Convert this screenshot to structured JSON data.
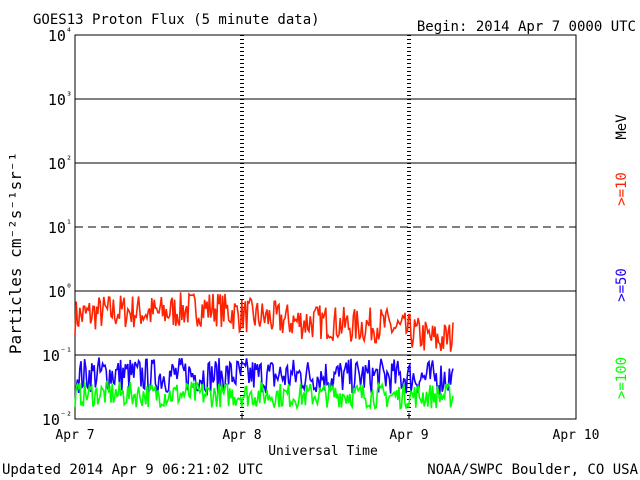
{
  "header": {
    "title": "GOES13 Proton Flux (5 minute data)",
    "begin": "Begin: 2014 Apr 7 0000 UTC"
  },
  "footer": {
    "updated": "Updated 2014 Apr  9 06:21:02 UTC",
    "credit": "NOAA/SWPC Boulder, CO USA"
  },
  "legend": {
    "unit": "MeV",
    "entries": [
      {
        "label": ">=10",
        "color": "#ff2200"
      },
      {
        "label": ">=50",
        "color": "#1a00ff"
      },
      {
        "label": ">=100",
        "color": "#00ff00"
      }
    ]
  },
  "chart_data": {
    "type": "line",
    "title": "GOES13 Proton Flux (5 minute data)",
    "xlabel": "Universal Time",
    "ylabel": "Particles cm⁻²s⁻¹sr⁻¹",
    "x_ticks": [
      "Apr 7",
      "Apr 8",
      "Apr 9",
      "Apr 10"
    ],
    "y_ticks": [
      "10⁻²",
      "10⁻¹",
      "10⁰",
      "10¹",
      "10²",
      "10³",
      "10⁴"
    ],
    "y_scale": "log",
    "ylim": [
      0.01,
      10000
    ],
    "xlim": [
      "2014-04-07 00:00",
      "2014-04-10 00:00"
    ],
    "dashed_gridline_at": 10,
    "series": [
      {
        "name": ">=10",
        "color": "#ff2200",
        "x": [
          "2014-04-07 00:00",
          "2014-04-07 04:00",
          "2014-04-07 08:00",
          "2014-04-07 12:00",
          "2014-04-07 16:00",
          "2014-04-07 20:00",
          "2014-04-08 00:00",
          "2014-04-08 04:00",
          "2014-04-08 08:00",
          "2014-04-08 12:00",
          "2014-04-08 16:00",
          "2014-04-08 20:00",
          "2014-04-09 00:00",
          "2014-04-09 04:00",
          "2014-04-09 06:20"
        ],
        "values": [
          0.42,
          0.5,
          0.52,
          0.48,
          0.55,
          0.58,
          0.45,
          0.4,
          0.35,
          0.35,
          0.3,
          0.32,
          0.25,
          0.18,
          0.2
        ]
      },
      {
        "name": ">=50",
        "color": "#1a00ff",
        "x": [
          "2014-04-07 00:00",
          "2014-04-07 04:00",
          "2014-04-07 08:00",
          "2014-04-07 12:00",
          "2014-04-07 16:00",
          "2014-04-07 20:00",
          "2014-04-08 00:00",
          "2014-04-08 04:00",
          "2014-04-08 08:00",
          "2014-04-08 12:00",
          "2014-04-08 16:00",
          "2014-04-08 20:00",
          "2014-04-09 00:00",
          "2014-04-09 04:00",
          "2014-04-09 06:20"
        ],
        "values": [
          0.05,
          0.055,
          0.052,
          0.05,
          0.053,
          0.05,
          0.052,
          0.05,
          0.051,
          0.05,
          0.049,
          0.05,
          0.048,
          0.047,
          0.047
        ]
      },
      {
        "name": ">=100",
        "color": "#00ff00",
        "x": [
          "2014-04-07 00:00",
          "2014-04-07 04:00",
          "2014-04-07 08:00",
          "2014-04-07 12:00",
          "2014-04-07 16:00",
          "2014-04-07 20:00",
          "2014-04-08 00:00",
          "2014-04-08 04:00",
          "2014-04-08 08:00",
          "2014-04-08 12:00",
          "2014-04-08 16:00",
          "2014-04-08 20:00",
          "2014-04-09 00:00",
          "2014-04-09 04:00",
          "2014-04-09 06:20"
        ],
        "values": [
          0.025,
          0.026,
          0.025,
          0.025,
          0.026,
          0.025,
          0.025,
          0.025,
          0.024,
          0.025,
          0.025,
          0.024,
          0.024,
          0.024,
          0.024
        ]
      }
    ],
    "grid": true
  }
}
